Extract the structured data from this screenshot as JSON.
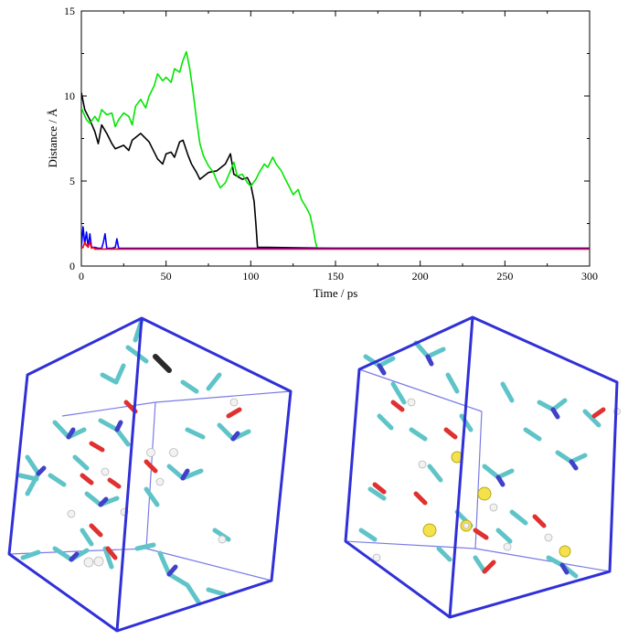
{
  "figure": {
    "top_panel_type": "line plot",
    "bottom_panels": [
      "left simulation box snapshot",
      "right simulation box snapshot"
    ]
  },
  "chart_data": {
    "type": "line",
    "title": "",
    "xlabel": "Time / ps",
    "ylabel": "Distance / Å",
    "xlim": [
      0,
      300
    ],
    "ylim": [
      0,
      15
    ],
    "xticks": [
      0,
      50,
      100,
      150,
      200,
      250,
      300
    ],
    "yticks": [
      0,
      5,
      10,
      15
    ],
    "grid": false,
    "legend": "none",
    "series": [
      {
        "color": "#000000",
        "x": [
          0,
          2,
          5,
          8,
          10,
          12,
          15,
          18,
          20,
          25,
          28,
          30,
          35,
          40,
          45,
          48,
          50,
          53,
          55,
          58,
          60,
          63,
          65,
          68,
          70,
          75,
          80,
          85,
          88,
          90,
          95,
          98,
          100,
          102,
          103,
          104,
          110,
          150,
          200,
          250,
          300
        ],
        "y": [
          10.2,
          9.2,
          8.6,
          7.9,
          7.2,
          8.3,
          7.8,
          7.2,
          6.9,
          7.1,
          6.8,
          7.4,
          7.8,
          7.3,
          6.3,
          6.0,
          6.6,
          6.7,
          6.4,
          7.3,
          7.4,
          6.5,
          6.0,
          5.5,
          5.1,
          5.5,
          5.6,
          6.0,
          6.6,
          5.4,
          5.1,
          5.2,
          4.8,
          3.8,
          2.5,
          1.1,
          1.1,
          1.05,
          1.05,
          1.05,
          1.05
        ]
      },
      {
        "color": "#00e600",
        "x": [
          0,
          3,
          5,
          8,
          10,
          12,
          15,
          18,
          20,
          22,
          25,
          28,
          30,
          32,
          35,
          38,
          40,
          43,
          45,
          48,
          50,
          53,
          55,
          58,
          60,
          62,
          64,
          66,
          68,
          70,
          72,
          75,
          78,
          80,
          82,
          85,
          88,
          90,
          92,
          95,
          98,
          100,
          103,
          105,
          108,
          110,
          113,
          115,
          118,
          120,
          123,
          125,
          128,
          130,
          133,
          135,
          137,
          138,
          139,
          140,
          150,
          200,
          250,
          300
        ],
        "y": [
          9.3,
          8.6,
          8.4,
          8.8,
          8.5,
          9.2,
          8.9,
          9.0,
          8.2,
          8.6,
          9.0,
          8.8,
          8.3,
          9.4,
          9.8,
          9.3,
          10.0,
          10.6,
          11.3,
          10.9,
          11.1,
          10.8,
          11.6,
          11.4,
          12.1,
          12.6,
          11.6,
          10.2,
          8.6,
          7.2,
          6.5,
          5.9,
          5.5,
          5.0,
          4.6,
          4.9,
          5.6,
          6.1,
          5.3,
          5.4,
          4.9,
          4.7,
          5.1,
          5.5,
          6.0,
          5.8,
          6.4,
          6.0,
          5.6,
          5.2,
          4.6,
          4.2,
          4.5,
          3.9,
          3.4,
          3.0,
          2.1,
          1.5,
          1.1,
          1.05,
          1.05,
          1.05,
          1.05,
          1.05
        ]
      },
      {
        "color": "#0000ff",
        "x": [
          0,
          1,
          2,
          3,
          4,
          5,
          6,
          8,
          10,
          12,
          13,
          14,
          15,
          18,
          20,
          21,
          22,
          23,
          25,
          30,
          40,
          60,
          80,
          100,
          120,
          140,
          150,
          200,
          250,
          300
        ],
        "y": [
          1.1,
          2.3,
          1.3,
          2.0,
          1.1,
          1.9,
          1.1,
          1.1,
          1.05,
          1.05,
          1.4,
          1.9,
          1.05,
          1.05,
          1.1,
          1.6,
          1.05,
          1.05,
          1.05,
          1.05,
          1.05,
          1.05,
          1.05,
          1.05,
          1.05,
          1.05,
          1.05,
          1.05,
          1.05,
          1.05
        ]
      },
      {
        "color": "#ff0000",
        "x": [
          0,
          1,
          2,
          3,
          4,
          5,
          6,
          7,
          8,
          10,
          15,
          20,
          50,
          100,
          150,
          200,
          250,
          300
        ],
        "y": [
          1.05,
          1.1,
          1.4,
          1.2,
          1.15,
          1.4,
          1.05,
          1.1,
          1.0,
          1.0,
          1.0,
          1.0,
          1.0,
          1.0,
          1.0,
          1.0,
          1.0,
          1.0
        ]
      }
    ]
  }
}
